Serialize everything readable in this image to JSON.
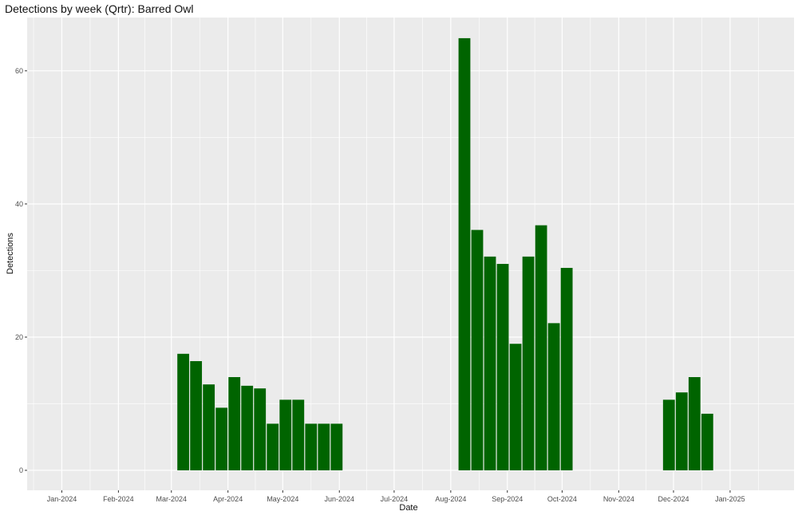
{
  "chart_data": {
    "type": "bar",
    "title": "Detections by week (Qrtr): Barred Owl",
    "xlabel": "Date",
    "ylabel": "Detections",
    "ylim": [
      -3,
      68
    ],
    "y_ticks": [
      0,
      20,
      40,
      60
    ],
    "x_range": [
      "2023-12-13",
      "2025-02-05"
    ],
    "x_ticks": [
      {
        "date": "2024-01-01",
        "label": "Jan-2024"
      },
      {
        "date": "2024-02-01",
        "label": "Feb-2024"
      },
      {
        "date": "2024-03-01",
        "label": "Mar-2024"
      },
      {
        "date": "2024-04-01",
        "label": "Apr-2024"
      },
      {
        "date": "2024-05-01",
        "label": "May-2024"
      },
      {
        "date": "2024-06-01",
        "label": "Jun-2024"
      },
      {
        "date": "2024-07-01",
        "label": "Jul-2024"
      },
      {
        "date": "2024-08-01",
        "label": "Aug-2024"
      },
      {
        "date": "2024-09-01",
        "label": "Sep-2024"
      },
      {
        "date": "2024-10-01",
        "label": "Oct-2024"
      },
      {
        "date": "2024-11-01",
        "label": "Nov-2024"
      },
      {
        "date": "2024-12-01",
        "label": "Dec-2024"
      },
      {
        "date": "2025-01-01",
        "label": "Jan-2025"
      }
    ],
    "grid": true,
    "bar_color": "#006400",
    "panel_color": "#ebebeb",
    "bars": [
      {
        "week_start": "2024-03-04",
        "value": 17.5
      },
      {
        "week_start": "2024-03-11",
        "value": 16.4
      },
      {
        "week_start": "2024-03-18",
        "value": 12.9
      },
      {
        "week_start": "2024-03-25",
        "value": 9.4
      },
      {
        "week_start": "2024-04-01",
        "value": 14.0
      },
      {
        "week_start": "2024-04-08",
        "value": 12.7
      },
      {
        "week_start": "2024-04-15",
        "value": 12.3
      },
      {
        "week_start": "2024-04-22",
        "value": 7.0
      },
      {
        "week_start": "2024-04-29",
        "value": 10.6
      },
      {
        "week_start": "2024-05-06",
        "value": 10.6
      },
      {
        "week_start": "2024-05-13",
        "value": 7.0
      },
      {
        "week_start": "2024-05-20",
        "value": 7.0
      },
      {
        "week_start": "2024-05-27",
        "value": 7.0
      },
      {
        "week_start": "2024-08-05",
        "value": 64.9
      },
      {
        "week_start": "2024-08-12",
        "value": 36.1
      },
      {
        "week_start": "2024-08-19",
        "value": 32.1
      },
      {
        "week_start": "2024-08-26",
        "value": 31.0
      },
      {
        "week_start": "2024-09-02",
        "value": 19.0
      },
      {
        "week_start": "2024-09-09",
        "value": 32.1
      },
      {
        "week_start": "2024-09-16",
        "value": 36.8
      },
      {
        "week_start": "2024-09-23",
        "value": 22.1
      },
      {
        "week_start": "2024-09-30",
        "value": 30.4
      },
      {
        "week_start": "2024-11-25",
        "value": 10.6
      },
      {
        "week_start": "2024-12-02",
        "value": 11.7
      },
      {
        "week_start": "2024-12-09",
        "value": 14.0
      },
      {
        "week_start": "2024-12-16",
        "value": 8.5
      }
    ]
  }
}
